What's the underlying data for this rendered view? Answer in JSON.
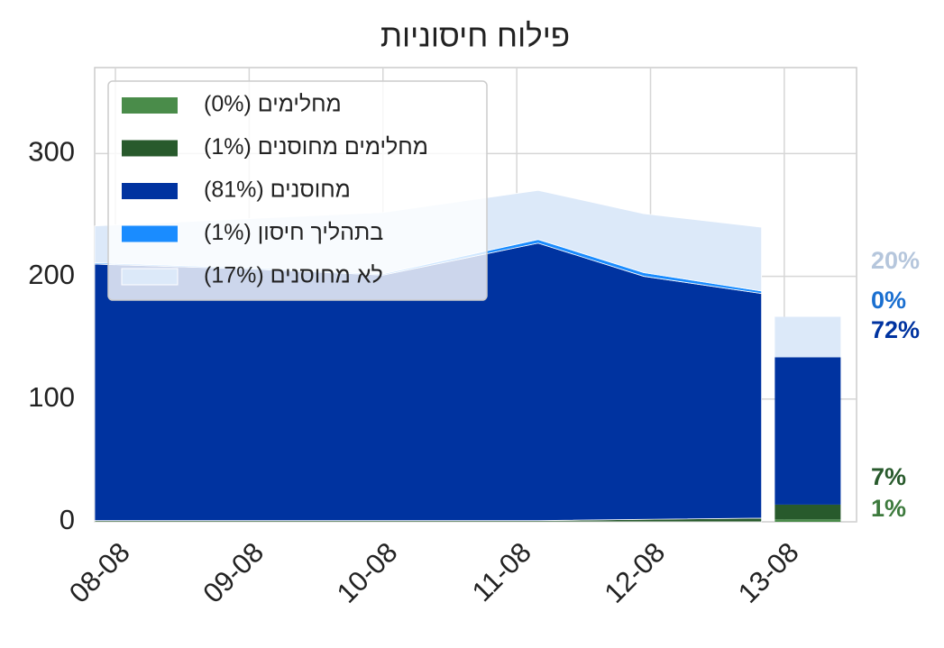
{
  "chart_data": {
    "type": "stacked-area-bar",
    "title": "פילוח חיסוניות",
    "x": [
      -0.155,
      1,
      2,
      3.16,
      3.95,
      4.83
    ],
    "xlim": [
      -0.155,
      5.54
    ],
    "xticks": [
      {
        "value": 0,
        "label": "08-08"
      },
      {
        "value": 1,
        "label": "09-08"
      },
      {
        "value": 2,
        "label": "10-08"
      },
      {
        "value": 3,
        "label": "11-08"
      },
      {
        "value": 4,
        "label": "12-08"
      },
      {
        "value": 5,
        "label": "13-08"
      }
    ],
    "ylim": [
      0,
      370
    ],
    "yticks": [
      0,
      100,
      200,
      300
    ],
    "grid": true,
    "bar_x": 5,
    "series": [
      {
        "name": "מחלימים (0%)",
        "color": "#4a8c4a",
        "values": [
          0,
          0,
          0,
          0,
          0,
          0
        ],
        "bar_value": 2,
        "bar_label": "1%"
      },
      {
        "name": "מחלימים מחוסנים (1%)",
        "color": "#285a2c",
        "values": [
          1,
          1,
          1,
          1,
          2,
          3
        ],
        "bar_value": 12,
        "bar_label": "7%"
      },
      {
        "name": "מחוסנים (81%)",
        "color": "#0033a0",
        "values": [
          209,
          205,
          200,
          226,
          198,
          183
        ],
        "bar_value": 120,
        "bar_label": "72%"
      },
      {
        "name": "בתהליך חיסון (1%)",
        "color": "#1a8cff",
        "values": [
          1,
          1,
          1,
          3,
          3,
          2
        ],
        "bar_value": 0,
        "bar_label": "0%"
      },
      {
        "name": "לא מחוסנים (17%)",
        "color": "#dce9f9",
        "values": [
          30,
          40,
          50,
          40,
          48,
          52
        ],
        "bar_value": 33,
        "bar_label": "20%"
      }
    ],
    "bar_label_colors": [
      "#3d7a3d",
      "#285a2c",
      "#0033a0",
      "#1a6fd0",
      "#b5c6dc"
    ]
  }
}
